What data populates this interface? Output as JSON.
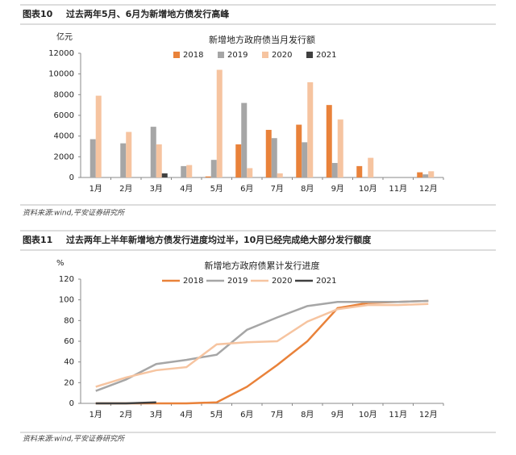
{
  "chart_data": [
    {
      "type": "bar",
      "label": "图表10",
      "caption": "过去两年5月、6月为新增地方债发行高峰",
      "title": "新增地方政府债当月发行额",
      "unit": "亿元",
      "categories": [
        "1月",
        "2月",
        "3月",
        "4月",
        "5月",
        "6月",
        "7月",
        "8月",
        "9月",
        "10月",
        "11月",
        "12月"
      ],
      "series": [
        {
          "name": "2018",
          "color": "#e9823a",
          "values": [
            0,
            0,
            0,
            0,
            100,
            3200,
            4600,
            5100,
            7000,
            1100,
            0,
            500
          ]
        },
        {
          "name": "2019",
          "color": "#a6a6a6",
          "values": [
            3700,
            3300,
            4900,
            1100,
            1700,
            7200,
            3800,
            3400,
            1400,
            0,
            0,
            300
          ]
        },
        {
          "name": "2020",
          "color": "#f6c4a0",
          "values": [
            7900,
            4400,
            3200,
            1200,
            10400,
            900,
            400,
            9200,
            5600,
            1900,
            0,
            600
          ]
        },
        {
          "name": "2021",
          "color": "#404040",
          "values": [
            null,
            null,
            400,
            null,
            null,
            null,
            null,
            null,
            null,
            null,
            null,
            null
          ]
        }
      ],
      "ylim": [
        0,
        12000
      ],
      "yticks": [
        0,
        2000,
        4000,
        6000,
        8000,
        10000,
        12000
      ],
      "source": "资料来源:wind,平安证券研究所"
    },
    {
      "type": "line",
      "label": "图表11",
      "caption": "过去两年上半年新增地方债发行进度均过半，10月已经完成绝大部分发行额度",
      "title": "新增地方政府债累计发行进度",
      "unit": "%",
      "categories": [
        "1月",
        "2月",
        "3月",
        "4月",
        "5月",
        "6月",
        "7月",
        "8月",
        "9月",
        "10月",
        "11月",
        "12月"
      ],
      "series": [
        {
          "name": "2018",
          "color": "#e9823a",
          "values": [
            0,
            0,
            0,
            0,
            1,
            16,
            37,
            60,
            92,
            97,
            98,
            99
          ]
        },
        {
          "name": "2019",
          "color": "#a6a6a6",
          "values": [
            12,
            23,
            38,
            42,
            47,
            71,
            83,
            94,
            98,
            98,
            98,
            99
          ]
        },
        {
          "name": "2020",
          "color": "#f6c4a0",
          "values": [
            16,
            25,
            32,
            35,
            57,
            59,
            60,
            79,
            91,
            95,
            95,
            96
          ]
        },
        {
          "name": "2021",
          "color": "#404040",
          "values": [
            0,
            0,
            1,
            null,
            null,
            null,
            null,
            null,
            null,
            null,
            null,
            null
          ]
        }
      ],
      "ylim": [
        0,
        120
      ],
      "yticks": [
        0,
        20,
        40,
        60,
        80,
        100,
        120
      ],
      "source": "资料来源:wind,平安证券研究所"
    }
  ]
}
